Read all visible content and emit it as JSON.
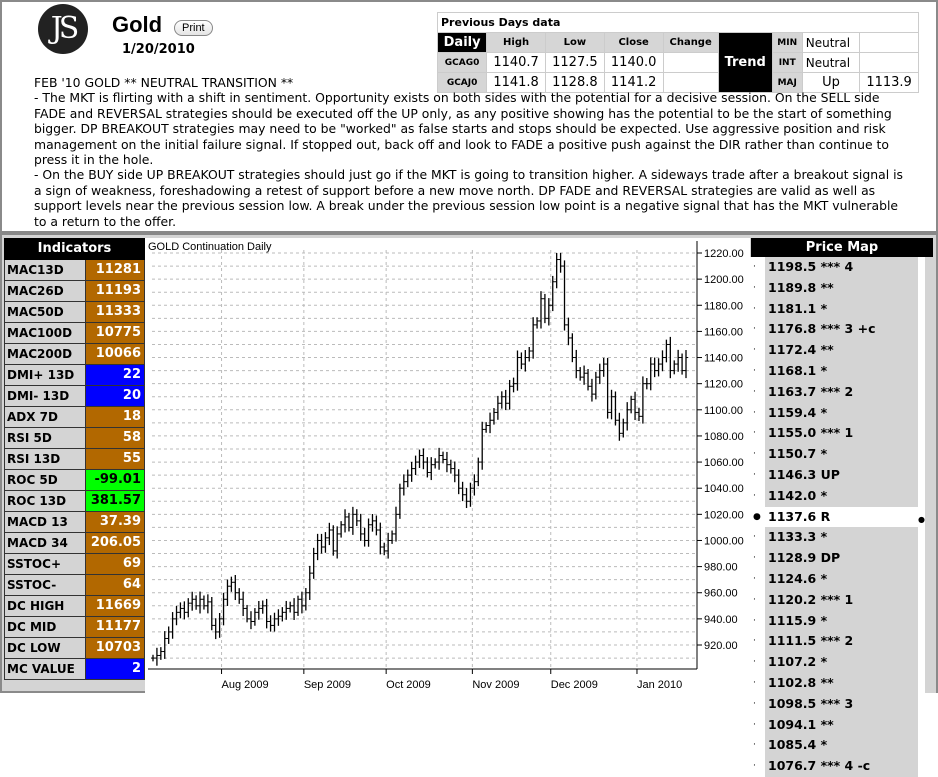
{
  "header": {
    "logo_text": "JS",
    "title": "Gold",
    "print_label": "Print",
    "date": "1/20/2010"
  },
  "commentary": {
    "headline": "FEB '10 GOLD ** NEUTRAL TRANSITION **",
    "para1": "- The MKT is flirting with a shift in sentiment. Opportunity exists on both sides with the potential for a decisive session. On the SELL side FADE and REVERSAL strategies should be executed off the UP only, as any positive showing has the potential to be the start of something bigger. DP BREAKOUT strategies may need to be \"worked\" as false starts and stops should be expected. Use aggressive position and risk management on the initial failure signal. If stopped out, back off and look to FADE a positive push against the DIR rather than continue to press it in the hole.",
    "para2": "- On the BUY side UP BREAKOUT strategies should just go if the MKT is going to transition higher. A sideways trade after a breakout signal is a sign of weakness, foreshadowing a retest of support before a new move north. DP FADE and REVERSAL strategies are valid as well as support levels near the previous session low. A break under the previous session low point is a negative signal that has the MKT vulnerable to a return to the offer."
  },
  "previous_days": {
    "title": "Previous Days data",
    "daily_label": "Daily",
    "columns": [
      "High",
      "Low",
      "Close",
      "Change"
    ],
    "rows": [
      {
        "symbol": "GCAG0",
        "high": "1140.7",
        "low": "1127.5",
        "close": "1140.0",
        "change": ""
      },
      {
        "symbol": "GCAJ0",
        "high": "1141.8",
        "low": "1128.8",
        "close": "1141.2",
        "change": ""
      }
    ],
    "trend_label": "Trend",
    "trend": [
      {
        "label": "MIN",
        "value": "Neutral",
        "extra": ""
      },
      {
        "label": "INT",
        "value": "Neutral",
        "extra": ""
      },
      {
        "label": "MAJ",
        "value": "Up",
        "extra": "1113.9"
      }
    ]
  },
  "indicators": {
    "title": "Indicators",
    "items": [
      {
        "label": "MAC13D",
        "value": "11281",
        "color": "#b26800"
      },
      {
        "label": "MAC26D",
        "value": "11193",
        "color": "#b26800"
      },
      {
        "label": "MAC50D",
        "value": "11333",
        "color": "#b26800"
      },
      {
        "label": "MAC100D",
        "value": "10775",
        "color": "#b26800"
      },
      {
        "label": "MAC200D",
        "value": "10066",
        "color": "#b26800"
      },
      {
        "label": "DMI+ 13D",
        "value": "22",
        "color": "#0000ff"
      },
      {
        "label": "DMI- 13D",
        "value": "20",
        "color": "#0000ff"
      },
      {
        "label": "ADX 7D",
        "value": "18",
        "color": "#b26800"
      },
      {
        "label": "RSI 5D",
        "value": "58",
        "color": "#b26800"
      },
      {
        "label": "RSI 13D",
        "value": "55",
        "color": "#b26800"
      },
      {
        "label": "ROC 5D",
        "value": "-99.01",
        "color": "#00ff00"
      },
      {
        "label": "ROC 13D",
        "value": "381.57",
        "color": "#00ff00"
      },
      {
        "label": "MACD 13",
        "value": "37.39",
        "color": "#b26800"
      },
      {
        "label": "MACD 34",
        "value": "206.05",
        "color": "#b26800"
      },
      {
        "label": "SSTOC+",
        "value": "69",
        "color": "#b26800"
      },
      {
        "label": "SSTOC-",
        "value": "64",
        "color": "#b26800"
      },
      {
        "label": "DC HIGH",
        "value": "11669",
        "color": "#b26800"
      },
      {
        "label": "DC MID",
        "value": "11177",
        "color": "#b26800"
      },
      {
        "label": "DC LOW",
        "value": "10703",
        "color": "#b26800"
      },
      {
        "label": "MC VALUE",
        "value": "2",
        "color": "#0000ff"
      }
    ]
  },
  "price_map": {
    "title": "Price Map",
    "items": [
      {
        "text": "1198.5 *** 4"
      },
      {
        "text": "1189.8 **"
      },
      {
        "text": "1181.1 *"
      },
      {
        "text": "1176.8 *** 3 +c"
      },
      {
        "text": "1172.4 **"
      },
      {
        "text": "1168.1 *"
      },
      {
        "text": "1163.7 *** 2"
      },
      {
        "text": "1159.4 *"
      },
      {
        "text": "1155.0 *** 1"
      },
      {
        "text": "1150.7 *"
      },
      {
        "text": "1146.3 UP"
      },
      {
        "text": "1142.0 *"
      },
      {
        "text": "1137.6 R",
        "current": true
      },
      {
        "text": "1133.3 *"
      },
      {
        "text": "1128.9 DP"
      },
      {
        "text": "1124.6 *"
      },
      {
        "text": "1120.2 *** 1"
      },
      {
        "text": "1115.9 *"
      },
      {
        "text": "1111.5 *** 2"
      },
      {
        "text": "1107.2 *"
      },
      {
        "text": "1102.8 **"
      },
      {
        "text": "1098.5 *** 3"
      },
      {
        "text": "1094.1 **"
      },
      {
        "text": "1085.4 *"
      },
      {
        "text": "1076.7 *** 4 -c"
      }
    ]
  },
  "chart_data": {
    "type": "ohlc",
    "title": "GOLD Continuation Daily",
    "ylim": [
      905,
      1228
    ],
    "yticks": [
      920,
      940,
      960,
      980,
      1000,
      1020,
      1040,
      1060,
      1080,
      1100,
      1120,
      1140,
      1160,
      1180,
      1200,
      1220
    ],
    "ytick_labels": [
      "920.00",
      "940.00",
      "960.00",
      "980.00",
      "1000.00",
      "1020.00",
      "1040.00",
      "1060.00",
      "1080.00",
      "1100.00",
      "1120.00",
      "1140.00",
      "1160.00",
      "1180.00",
      "1200.00",
      "1220.00"
    ],
    "months": [
      {
        "label": "Aug 2009",
        "start_index": 18
      },
      {
        "label": "Sep 2009",
        "start_index": 39
      },
      {
        "label": "Oct 2009",
        "start_index": 60
      },
      {
        "label": "Nov 2009",
        "start_index": 82
      },
      {
        "label": "Dec 2009",
        "start_index": 102
      },
      {
        "label": "Jan 2010",
        "start_index": 124
      }
    ],
    "close": [
      910,
      912,
      915,
      925,
      930,
      940,
      945,
      948,
      945,
      952,
      955,
      950,
      955,
      950,
      953,
      935,
      930,
      940,
      955,
      965,
      968,
      960,
      955,
      948,
      940,
      938,
      945,
      948,
      950,
      938,
      935,
      940,
      942,
      945,
      948,
      950,
      945,
      955,
      950,
      960,
      975,
      990,
      1000,
      995,
      1002,
      1008,
      992,
      1005,
      1012,
      1018,
      1010,
      1020,
      1015,
      1005,
      1000,
      1012,
      1015,
      1008,
      995,
      992,
      1000,
      1005,
      1020,
      1040,
      1045,
      1050,
      1055,
      1060,
      1065,
      1060,
      1052,
      1058,
      1060,
      1065,
      1062,
      1058,
      1055,
      1050,
      1040,
      1035,
      1030,
      1040,
      1045,
      1060,
      1085,
      1088,
      1092,
      1098,
      1105,
      1110,
      1105,
      1118,
      1120,
      1140,
      1135,
      1140,
      1145,
      1165,
      1168,
      1185,
      1170,
      1180,
      1198,
      1215,
      1210,
      1165,
      1155,
      1140,
      1130,
      1125,
      1128,
      1118,
      1112,
      1125,
      1130,
      1135,
      1098,
      1110,
      1092,
      1082,
      1090,
      1100,
      1108,
      1098,
      1095,
      1120,
      1120,
      1135,
      1130,
      1135,
      1140,
      1150,
      1130,
      1135,
      1140,
      1130,
      1140
    ],
    "typical_range": 14
  }
}
